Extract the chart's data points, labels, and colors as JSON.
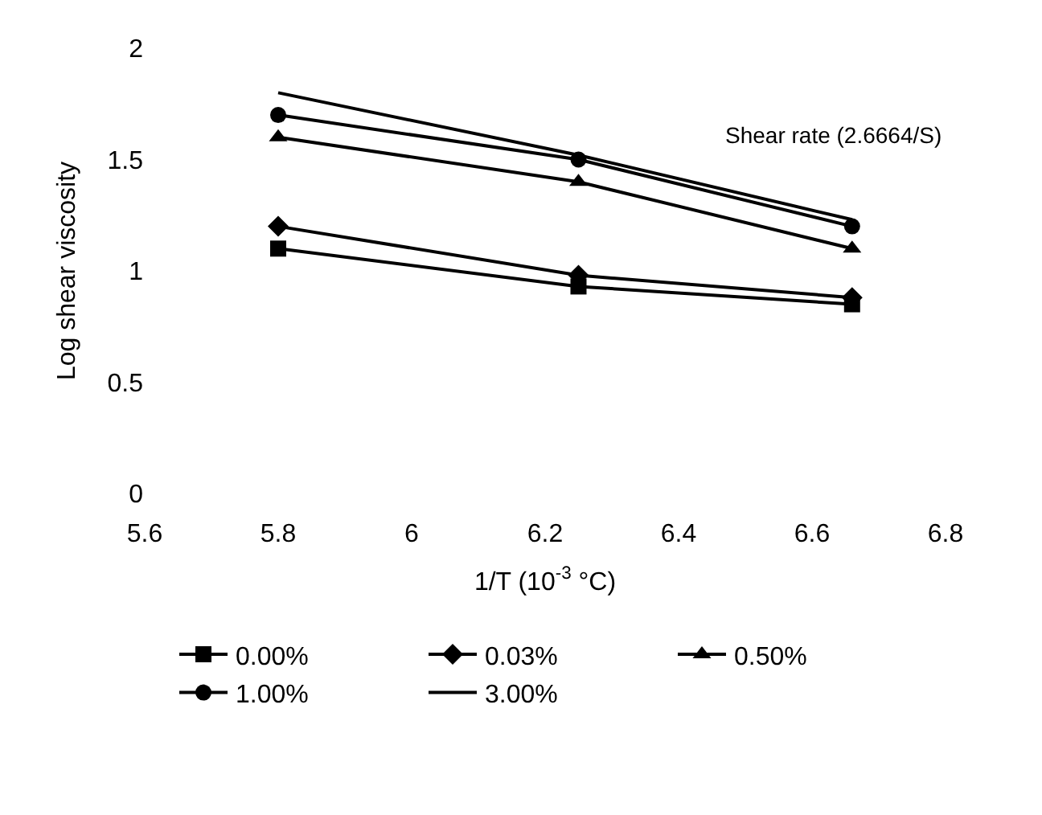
{
  "chart_data": {
    "type": "line",
    "xlabel": "1/T (10$^{-3}$ °C)",
    "ylabel": "Log shear viscosity",
    "x": [
      5.8,
      6.25,
      6.66
    ],
    "series": [
      {
        "name": "0.00%",
        "color": "#000000",
        "marker": "square",
        "values": [
          1.1,
          0.93,
          0.85
        ]
      },
      {
        "name": "0.03%",
        "color": "#000000",
        "marker": "diamond",
        "values": [
          1.2,
          0.98,
          0.88
        ]
      },
      {
        "name": "0.50%",
        "color": "#000000",
        "marker": "triangle",
        "values": [
          1.6,
          1.4,
          1.1
        ]
      },
      {
        "name": "1.00%",
        "color": "#000000",
        "marker": "circle",
        "values": [
          1.7,
          1.5,
          1.2
        ]
      },
      {
        "name": "3.00%",
        "color": "#000000",
        "marker": "none",
        "values": [
          1.8,
          1.52,
          1.23
        ]
      }
    ],
    "annotations": [
      "Shear rate (2.6664/S)"
    ],
    "xlim": [
      5.6,
      6.8
    ],
    "xticks": [
      5.6,
      5.8,
      6,
      6.2,
      6.4,
      6.6,
      6.8
    ],
    "ylim": [
      0,
      2
    ],
    "yticks": [
      0,
      0.5,
      1,
      1.5,
      2
    ],
    "legend": "bottom",
    "line_style": "solid"
  }
}
